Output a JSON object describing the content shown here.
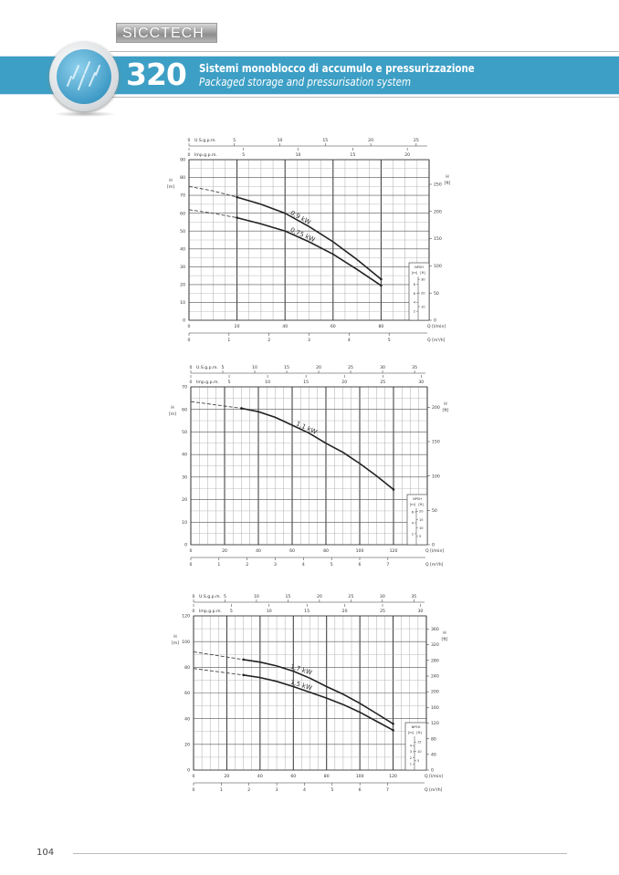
{
  "header": {
    "brand": "SICCTECH",
    "section_number": "320",
    "title_it": "Sistemi monoblocco di accumulo e pressurizzazione",
    "title_en": "Packaged storage and pressurisation system",
    "band_color": "#3d9fc5"
  },
  "footer": {
    "page_number": "104"
  },
  "labels": {
    "us_gpm": "U.S.g.p.m.",
    "imp_gpm": "Imp.g.p.m.",
    "h": "H",
    "m": "[m]",
    "ft": "[ft]",
    "q_lmin": "Q [l/min]",
    "q_m3h": "Q [m³/h]",
    "npsh": "NPSH"
  },
  "chart_data": [
    {
      "type": "line",
      "xlabel": "Q [l/min]",
      "ylabel": "H [m]",
      "xlim": [
        0,
        100
      ],
      "ylim": [
        0,
        90
      ],
      "x_ticks": [
        0,
        20,
        40,
        60,
        80
      ],
      "y_ticks": [
        0,
        10,
        20,
        30,
        40,
        50,
        60,
        70,
        80,
        90
      ],
      "grid": true,
      "right_axis_ft_ticks": [
        0,
        50,
        100,
        150,
        200,
        250
      ],
      "top_us_gpm_ticks": [
        0,
        5,
        10,
        15,
        20,
        25
      ],
      "top_imp_gpm_ticks": [
        0,
        5,
        10,
        15,
        20
      ],
      "bottom_m3h_ticks": [
        0,
        1,
        2,
        3,
        4,
        5
      ],
      "npsh_m_ticks": [
        2,
        4,
        6,
        8
      ],
      "npsh_ft_ticks": [
        10,
        20,
        30
      ],
      "series": [
        {
          "name": "0,9 kW",
          "dashed_until": 20,
          "points": [
            [
              0,
              75
            ],
            [
              10,
              72.5
            ],
            [
              20,
              69
            ],
            [
              30,
              65
            ],
            [
              40,
              60
            ],
            [
              50,
              52.5
            ],
            [
              60,
              44
            ],
            [
              70,
              34
            ],
            [
              80,
              23
            ]
          ]
        },
        {
          "name": "0,75 kW",
          "dashed_until": 20,
          "points": [
            [
              0,
              62
            ],
            [
              10,
              60
            ],
            [
              20,
              57.5
            ],
            [
              30,
              54
            ],
            [
              40,
              50
            ],
            [
              50,
              44
            ],
            [
              60,
              37
            ],
            [
              70,
              28.5
            ],
            [
              80,
              19.5
            ]
          ]
        }
      ]
    },
    {
      "type": "line",
      "xlabel": "Q [l/min]",
      "ylabel": "H [m]",
      "xlim": [
        0,
        140
      ],
      "ylim": [
        0,
        70
      ],
      "x_ticks": [
        0,
        20,
        40,
        60,
        80,
        100,
        120
      ],
      "y_ticks": [
        0,
        10,
        20,
        30,
        40,
        50,
        60,
        70
      ],
      "grid": true,
      "right_axis_ft_ticks": [
        0,
        50,
        100,
        150,
        200
      ],
      "top_us_gpm_ticks": [
        0,
        5,
        10,
        15,
        20,
        25,
        30,
        35
      ],
      "top_imp_gpm_ticks": [
        0,
        5,
        10,
        15,
        20,
        25,
        30
      ],
      "bottom_m3h_ticks": [
        0,
        1,
        2,
        3,
        4,
        5,
        6,
        7
      ],
      "npsh_m_ticks": [
        2,
        4,
        6
      ],
      "npsh_ft_ticks": [
        5,
        10,
        15,
        20
      ],
      "series": [
        {
          "name": "1,1 kW",
          "dashed_until": 30,
          "points": [
            [
              0,
              63.5
            ],
            [
              15,
              62
            ],
            [
              30,
              60.5
            ],
            [
              40,
              59
            ],
            [
              50,
              56.5
            ],
            [
              60,
              53
            ],
            [
              70,
              49.5
            ],
            [
              80,
              45
            ],
            [
              90,
              41
            ],
            [
              100,
              36
            ],
            [
              110,
              30.5
            ],
            [
              120,
              24.5
            ]
          ]
        }
      ]
    },
    {
      "type": "line",
      "xlabel": "Q [l/min]",
      "ylabel": "H [m]",
      "xlim": [
        0,
        140
      ],
      "ylim": [
        0,
        120
      ],
      "x_ticks": [
        0,
        20,
        40,
        60,
        80,
        100,
        120
      ],
      "y_ticks": [
        0,
        20,
        40,
        60,
        80,
        100,
        120
      ],
      "grid": true,
      "right_axis_ft_ticks": [
        0,
        40,
        80,
        120,
        160,
        200,
        240,
        280,
        320,
        360
      ],
      "top_us_gpm_ticks": [
        0,
        5,
        10,
        15,
        20,
        25,
        30,
        35
      ],
      "top_imp_gpm_ticks": [
        0,
        5,
        10,
        15,
        20,
        25,
        30
      ],
      "bottom_m3h_ticks": [
        0,
        1,
        2,
        3,
        4,
        5,
        6,
        7
      ],
      "npsh_m_ticks": [
        1,
        2,
        3,
        4
      ],
      "npsh_ft_ticks": [
        5,
        10,
        15
      ],
      "series": [
        {
          "name": "1,7 kW",
          "dashed_until": 30,
          "points": [
            [
              0,
              92
            ],
            [
              15,
              89
            ],
            [
              30,
              86
            ],
            [
              40,
              84
            ],
            [
              50,
              81
            ],
            [
              60,
              77
            ],
            [
              70,
              71.5
            ],
            [
              80,
              65
            ],
            [
              90,
              59
            ],
            [
              100,
              52
            ],
            [
              110,
              44
            ],
            [
              120,
              36
            ]
          ]
        },
        {
          "name": "1,5 kW",
          "dashed_until": 30,
          "points": [
            [
              0,
              79
            ],
            [
              15,
              76.5
            ],
            [
              30,
              74
            ],
            [
              40,
              72
            ],
            [
              50,
              69
            ],
            [
              60,
              65
            ],
            [
              70,
              60.5
            ],
            [
              80,
              56
            ],
            [
              90,
              51
            ],
            [
              100,
              45
            ],
            [
              110,
              38
            ],
            [
              120,
              31
            ]
          ]
        }
      ]
    }
  ]
}
